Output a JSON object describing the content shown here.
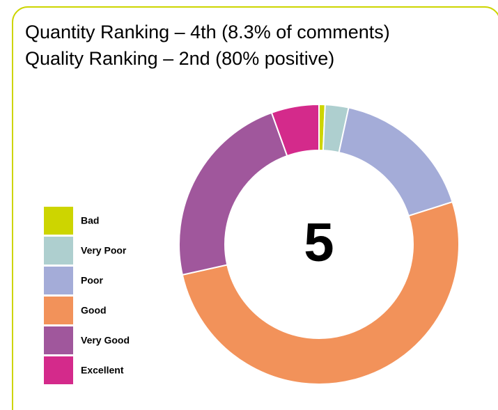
{
  "chart_data": {
    "type": "donut",
    "title": "Quantity Ranking – 4th (8.3% of comments)",
    "subtitle": "Quality Ranking – 2nd (80% positive)",
    "center_label": "5",
    "categories": [
      "Bad",
      "Very Poor",
      "Poor",
      "Good",
      "Very Good",
      "Excellent"
    ],
    "values": [
      0.7,
      2.7,
      16.7,
      51.4,
      23,
      5.5
    ],
    "colors": [
      "#cdd500",
      "#aecfcf",
      "#a4acd8",
      "#f2925a",
      "#a0579c",
      "#d42a8b"
    ],
    "legend": "left"
  }
}
